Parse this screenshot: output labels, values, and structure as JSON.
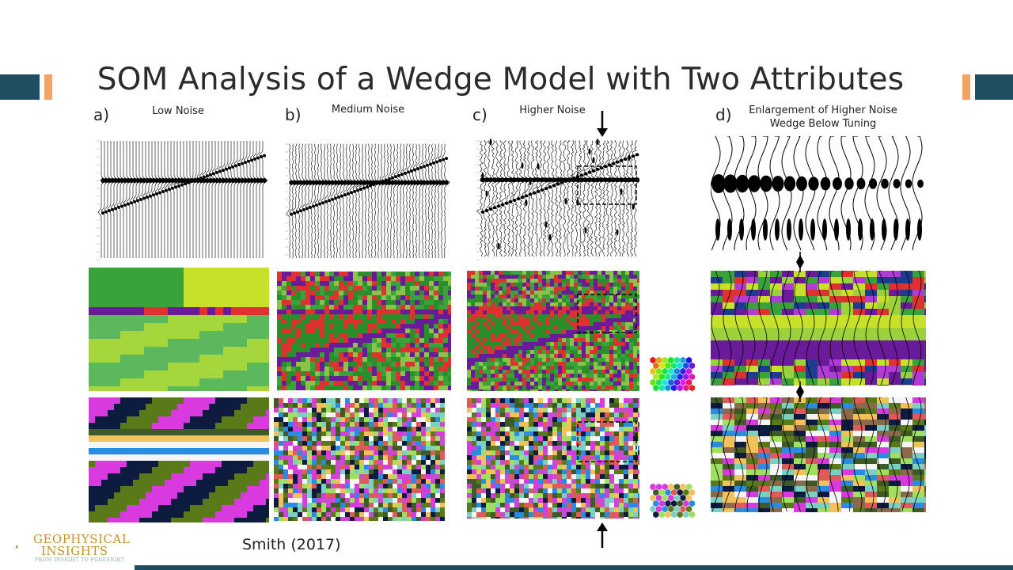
{
  "title": "SOM Analysis of a Wedge Model with Two Attributes",
  "panels": [
    {
      "letter": "a)",
      "heading": "Low Noise"
    },
    {
      "letter": "b)",
      "heading": "Medium Noise"
    },
    {
      "letter": "c)",
      "heading": "Higher Noise"
    },
    {
      "letter": "d)",
      "heading_line1": "Enlargement of Higher Noise",
      "heading_line2": "Wedge Below Tuning"
    }
  ],
  "citation": "Smith (2017)",
  "logo": {
    "name_line1": "GEOPHYSICAL",
    "name_line2": "INSIGHTS",
    "tagline": "FROM INSIGHT TO FORESIGHT"
  },
  "colors": {
    "navy": "#1f4e63",
    "orange": "#f4a460",
    "logo_gold": "#c8912e"
  }
}
